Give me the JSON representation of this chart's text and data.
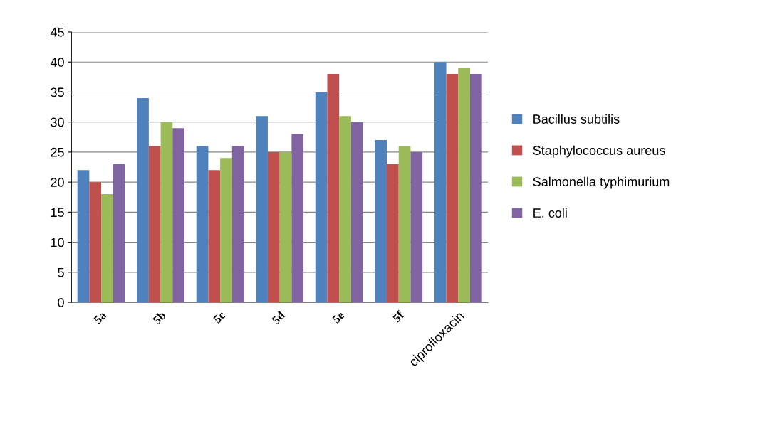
{
  "chart_data": {
    "type": "bar",
    "categories": [
      "5a",
      "5b",
      "5c",
      "5d",
      "5e",
      "5f",
      "ciprofloxacin"
    ],
    "series": [
      {
        "name": "Bacillus subtilis",
        "color": "#4f81bd",
        "values": [
          22,
          34,
          26,
          31,
          35,
          27,
          40
        ]
      },
      {
        "name": "Staphylococcus aureus",
        "color": "#c0504d",
        "values": [
          20,
          26,
          22,
          25,
          38,
          23,
          38
        ]
      },
      {
        "name": "Salmonella typhimurium",
        "color": "#9bbb59",
        "values": [
          18,
          30,
          24,
          25,
          31,
          26,
          39
        ]
      },
      {
        "name": "E. coli",
        "color": "#8064a2",
        "values": [
          23,
          29,
          26,
          28,
          30,
          25,
          38
        ]
      }
    ],
    "ylim": [
      0,
      45
    ],
    "yticks": [
      0,
      5,
      10,
      15,
      20,
      25,
      30,
      35,
      40,
      45
    ],
    "grid": "y",
    "legend": "right"
  }
}
